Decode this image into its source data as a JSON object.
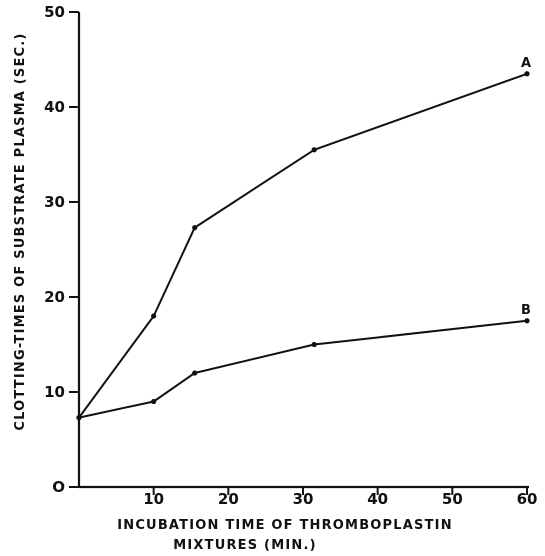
{
  "chart_data": {
    "type": "line",
    "title": "",
    "xlabel_lines": [
      "INCUBATION TIME OF THROMBOPLASTIN",
      "MIXTURES (MIN.)"
    ],
    "ylabel": "CLOTTING-TIMES OF SUBSTRATE PLASMA (SEC.)",
    "xlim": [
      0,
      60
    ],
    "ylim": [
      0,
      50
    ],
    "xticks": [
      0,
      10,
      20,
      30,
      40,
      50,
      60
    ],
    "xtick_labels": [
      "",
      "10",
      "20",
      "30",
      "40",
      "50",
      "60"
    ],
    "yticks": [
      0,
      10,
      20,
      30,
      40,
      50
    ],
    "ytick_labels": [
      "O",
      "10",
      "20",
      "30",
      "40",
      "50"
    ],
    "grid": false,
    "series": [
      {
        "name": "A",
        "x": [
          0,
          10,
          15.5,
          31.5,
          60
        ],
        "y": [
          7.3,
          18,
          27.3,
          35.5,
          43.5
        ]
      },
      {
        "name": "B",
        "x": [
          0,
          10,
          15.5,
          31.5,
          60
        ],
        "y": [
          7.3,
          9,
          12,
          15,
          17.5
        ]
      }
    ]
  }
}
